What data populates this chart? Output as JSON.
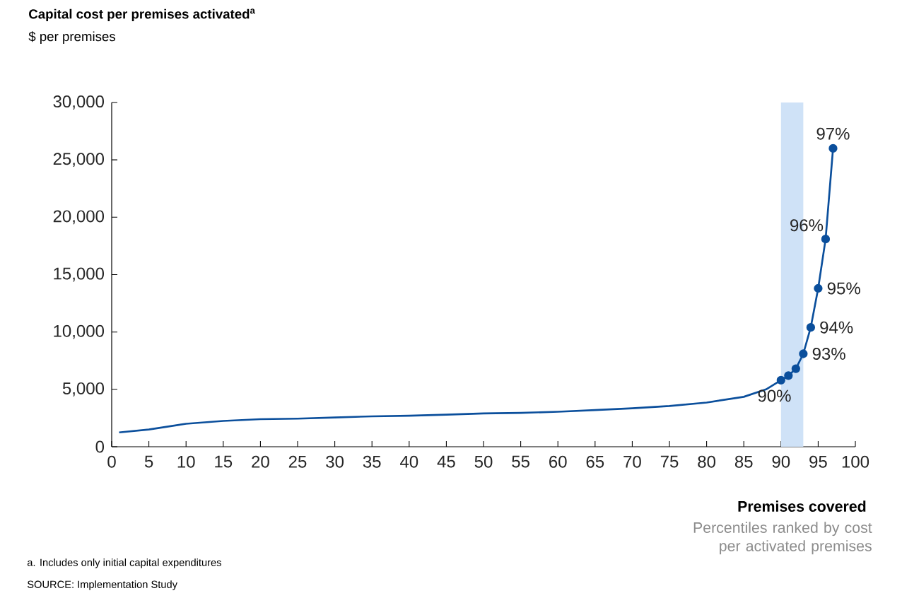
{
  "chart_data": {
    "type": "line",
    "title": "Capital cost per premises activated$^{a}$",
    "subtitle": "$ per premises",
    "xlabel": "Premises covered",
    "series": [
      {
        "color": "#0b4f9c",
        "marker": "none",
        "x": [
          1,
          5,
          10,
          15,
          20,
          25,
          30,
          35,
          40,
          45,
          50,
          55,
          60,
          65,
          70,
          75,
          80,
          85,
          88,
          90
        ],
        "values": [
          1250,
          1500,
          2000,
          2250,
          2400,
          2450,
          2550,
          2650,
          2700,
          2800,
          2900,
          2950,
          3050,
          3200,
          3350,
          3550,
          3850,
          4350,
          5000,
          5800
        ]
      },
      {
        "color": "#0b4f9c",
        "marker": "circle",
        "x": [
          90,
          91,
          92,
          93,
          94,
          95,
          96,
          97
        ],
        "values": [
          5800,
          6200,
          6800,
          8100,
          10400,
          13800,
          18100,
          26000
        ]
      }
    ],
    "xlim": [
      0,
      100
    ],
    "xticks": [
      0,
      5,
      10,
      15,
      20,
      25,
      30,
      35,
      40,
      45,
      50,
      55,
      60,
      65,
      70,
      75,
      80,
      85,
      90,
      95,
      100
    ],
    "ylim": [
      0,
      30000
    ],
    "yticks": [
      {
        "value": 0,
        "label": "0"
      },
      {
        "value": 5000,
        "label": "5,000"
      },
      {
        "value": 10000,
        "label": "10,000"
      },
      {
        "value": 15000,
        "label": "15,000"
      },
      {
        "value": 20000,
        "label": "20,000"
      },
      {
        "value": 25000,
        "label": "25,000"
      },
      {
        "value": 30000,
        "label": "30,000"
      }
    ],
    "bands": [
      {
        "axis": "x",
        "from": 90,
        "to": 93,
        "color": "#cfe2f7"
      }
    ],
    "grid": false,
    "line_style": "solid",
    "annotations": [
      {
        "text": "90%",
        "x": 90,
        "y": 5800
      },
      {
        "text": "93%",
        "x": 93,
        "y": 8100
      },
      {
        "text": "94%",
        "x": 94,
        "y": 10400
      },
      {
        "text": "95%",
        "x": 95,
        "y": 13800
      },
      {
        "text": "96%",
        "x": 96,
        "y": 18100
      },
      {
        "text": "97%",
        "x": 97,
        "y": 26000
      },
      "Percentiles ranked by cost per activated premises",
      "a. Includes only initial capital expenditures",
      "SOURCE: Implementation Study"
    ]
  }
}
